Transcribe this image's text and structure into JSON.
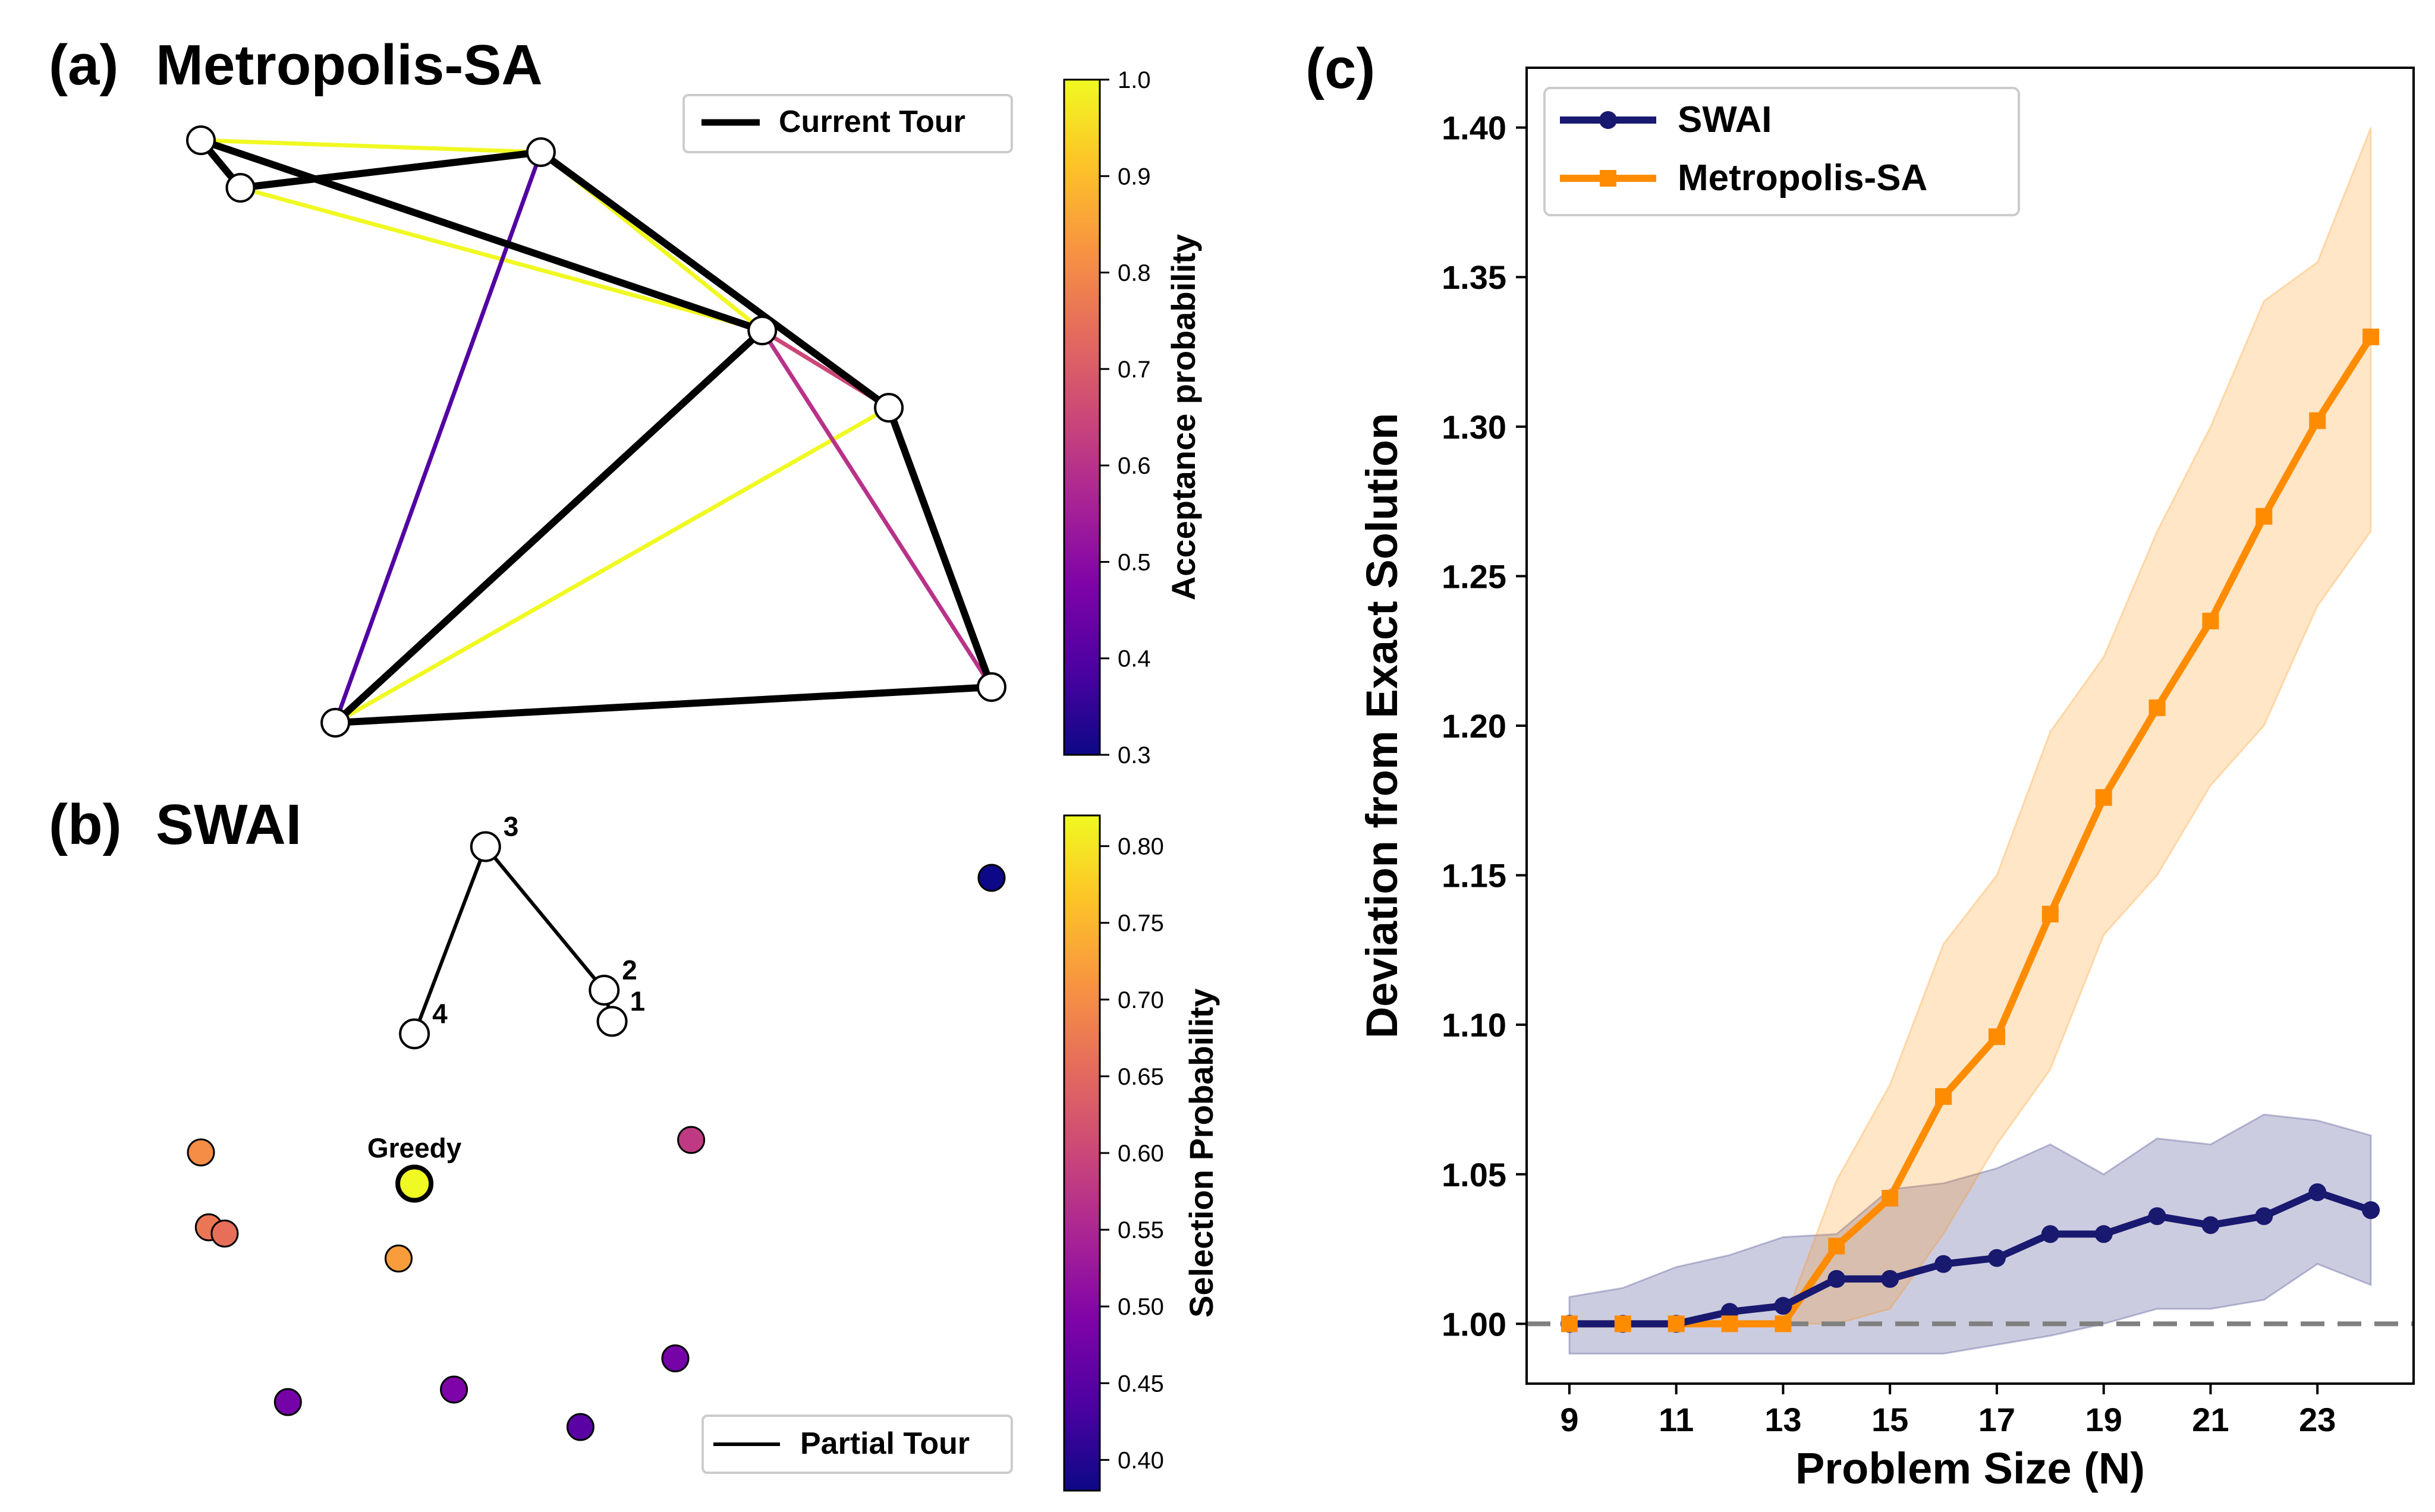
{
  "chart_data": [
    {
      "panel": "a",
      "type": "network",
      "panel_label": "(a)",
      "title": "Metropolis-SA",
      "legend": [
        "Current Tour"
      ],
      "colorbar": {
        "label": "Acceptance probability",
        "min": 0.3,
        "max": 1.0,
        "ticks": [
          "0.3",
          "0.4",
          "0.5",
          "0.6",
          "0.7",
          "0.8",
          "0.9",
          "1.0"
        ]
      },
      "nodes": [
        {
          "id": 0,
          "x": 0.0,
          "y": 0.98
        },
        {
          "id": 1,
          "x": 0.05,
          "y": 0.9
        },
        {
          "id": 2,
          "x": 0.43,
          "y": 0.96
        },
        {
          "id": 3,
          "x": 0.71,
          "y": 0.66
        },
        {
          "id": 4,
          "x": 0.87,
          "y": 0.53
        },
        {
          "id": 5,
          "x": 1.0,
          "y": 0.06
        },
        {
          "id": 6,
          "x": 0.17,
          "y": 0.0
        }
      ],
      "tour_edges": [
        [
          0,
          1
        ],
        [
          1,
          2
        ],
        [
          2,
          4
        ],
        [
          4,
          5
        ],
        [
          5,
          6
        ],
        [
          6,
          3
        ],
        [
          3,
          0
        ]
      ],
      "proposal_edges": [
        {
          "from": 0,
          "to": 2,
          "p": 1.0
        },
        {
          "from": 1,
          "to": 3,
          "p": 1.0
        },
        {
          "from": 2,
          "to": 3,
          "p": 1.0
        },
        {
          "from": 6,
          "to": 4,
          "p": 1.0
        },
        {
          "from": 6,
          "to": 2,
          "p": 0.4
        },
        {
          "from": 3,
          "to": 5,
          "p": 0.6
        },
        {
          "from": 3,
          "to": 4,
          "p": 0.65
        }
      ]
    },
    {
      "panel": "b",
      "type": "scatter",
      "panel_label": "(b)",
      "title": "SWAI",
      "legend": [
        "Partial Tour"
      ],
      "greedy_label": "Greedy",
      "colorbar": {
        "label": "Selection Probability",
        "min": 0.38,
        "max": 0.82,
        "ticks": [
          "0.40",
          "0.45",
          "0.50",
          "0.55",
          "0.60",
          "0.65",
          "0.70",
          "0.75",
          "0.80"
        ]
      },
      "tour_nodes": [
        {
          "label": "1",
          "x": 0.52,
          "y": 0.71
        },
        {
          "label": "2",
          "x": 0.51,
          "y": 0.76
        },
        {
          "label": "3",
          "x": 0.36,
          "y": 0.99
        },
        {
          "label": "4",
          "x": 0.27,
          "y": 0.69
        }
      ],
      "candidates": [
        {
          "x": 1.0,
          "y": 0.94,
          "p": 0.38
        },
        {
          "x": 0.62,
          "y": 0.52,
          "p": 0.58
        },
        {
          "x": 0.0,
          "y": 0.5,
          "p": 0.7
        },
        {
          "x": 0.27,
          "y": 0.45,
          "p": 0.82,
          "greedy": true
        },
        {
          "x": 0.01,
          "y": 0.38,
          "p": 0.67
        },
        {
          "x": 0.03,
          "y": 0.37,
          "p": 0.66
        },
        {
          "x": 0.25,
          "y": 0.33,
          "p": 0.72
        },
        {
          "x": 0.6,
          "y": 0.17,
          "p": 0.48
        },
        {
          "x": 0.11,
          "y": 0.1,
          "p": 0.48
        },
        {
          "x": 0.32,
          "y": 0.12,
          "p": 0.49
        },
        {
          "x": 0.48,
          "y": 0.06,
          "p": 0.45
        }
      ]
    },
    {
      "panel": "c",
      "type": "line",
      "panel_label": "(c)",
      "xlabel": "Problem Size (N)",
      "ylabel": "Deviation from Exact Solution",
      "xlim": [
        8.2,
        24.8
      ],
      "ylim": [
        0.98,
        1.42
      ],
      "xticks": [
        9,
        11,
        13,
        15,
        17,
        19,
        21,
        23
      ],
      "yticks": [
        1.0,
        1.05,
        1.1,
        1.15,
        1.2,
        1.25,
        1.3,
        1.35,
        1.4
      ],
      "x": [
        9,
        10,
        11,
        12,
        13,
        14,
        15,
        16,
        17,
        18,
        19,
        20,
        21,
        22,
        23,
        24
      ],
      "reference_line": 1.0,
      "series": [
        {
          "name": "SWAI",
          "color": "#191970",
          "marker": "circle",
          "values": [
            1.0,
            1.0,
            1.0,
            1.004,
            1.006,
            1.015,
            1.015,
            1.02,
            1.022,
            1.03,
            1.03,
            1.036,
            1.033,
            1.036,
            1.044,
            1.038
          ],
          "lower": [
            0.99,
            0.99,
            0.99,
            0.99,
            0.99,
            0.99,
            0.99,
            0.99,
            0.993,
            0.996,
            1.0,
            1.005,
            1.005,
            1.008,
            1.02,
            1.013
          ],
          "upper": [
            1.009,
            1.012,
            1.019,
            1.023,
            1.029,
            1.03,
            1.045,
            1.047,
            1.052,
            1.06,
            1.05,
            1.062,
            1.06,
            1.07,
            1.068,
            1.063
          ]
        },
        {
          "name": "Metropolis-SA",
          "color": "#ff8c00",
          "marker": "square",
          "values": [
            1.0,
            1.0,
            1.0,
            1.0,
            1.0,
            1.026,
            1.042,
            1.076,
            1.096,
            1.137,
            1.176,
            1.206,
            1.235,
            1.27,
            1.302,
            1.33
          ],
          "lower": [
            1.0,
            1.0,
            1.0,
            1.0,
            1.0,
            1.0,
            1.005,
            1.03,
            1.06,
            1.085,
            1.13,
            1.15,
            1.18,
            1.2,
            1.24,
            1.265
          ],
          "upper": [
            1.0,
            1.0,
            1.0,
            1.0,
            1.0,
            1.048,
            1.08,
            1.127,
            1.15,
            1.198,
            1.223,
            1.265,
            1.3,
            1.342,
            1.355,
            1.4
          ]
        }
      ]
    }
  ]
}
